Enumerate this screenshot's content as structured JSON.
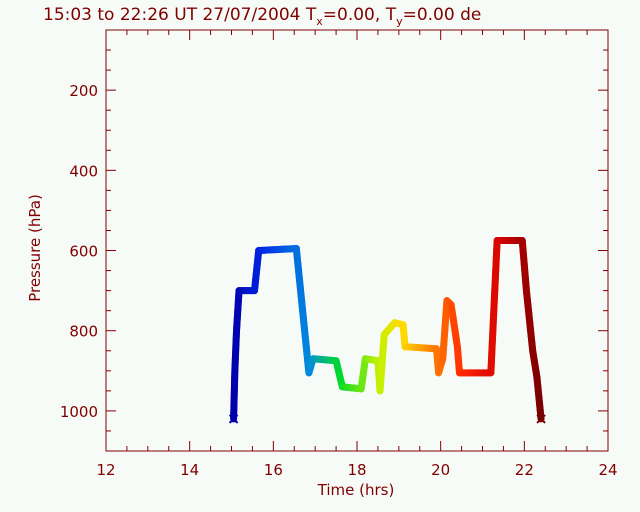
{
  "chart_data": {
    "type": "line",
    "title": "15:03 to 22:26 UT 27/07/2004   T",
    "title_parts": {
      "t1": "T",
      "s1": "x",
      "v1": "=0.00, ",
      "t2": "T",
      "s2": "y",
      "v2": "=0.00 de"
    },
    "xlabel": "Time  (hrs)",
    "ylabel": "Pressure  (hPa)",
    "xlim": [
      12,
      24
    ],
    "ylim": [
      1100,
      50
    ],
    "x_ticks": [
      12,
      14,
      16,
      18,
      20,
      22,
      24
    ],
    "y_ticks": [
      200,
      400,
      600,
      800,
      1000
    ],
    "x_minor_step": 0.5,
    "y_minor_step": 50,
    "colors": {
      "background": "#f7fbf7",
      "axis": "#800000"
    },
    "series": [
      {
        "colormap": "rainbow",
        "points": [
          [
            15.05,
            1020
          ],
          [
            15.08,
            900
          ],
          [
            15.12,
            800
          ],
          [
            15.18,
            700
          ],
          [
            15.55,
            700
          ],
          [
            15.65,
            600
          ],
          [
            16.55,
            595
          ],
          [
            16.85,
            905
          ],
          [
            16.95,
            870
          ],
          [
            17.5,
            875
          ],
          [
            17.65,
            940
          ],
          [
            18.1,
            945
          ],
          [
            18.2,
            870
          ],
          [
            18.5,
            875
          ],
          [
            18.55,
            950
          ],
          [
            18.65,
            810
          ],
          [
            18.9,
            780
          ],
          [
            19.1,
            785
          ],
          [
            19.15,
            840
          ],
          [
            19.9,
            845
          ],
          [
            19.95,
            905
          ],
          [
            20.05,
            870
          ],
          [
            20.15,
            725
          ],
          [
            20.25,
            735
          ],
          [
            20.4,
            840
          ],
          [
            20.45,
            905
          ],
          [
            21.2,
            905
          ],
          [
            21.35,
            575
          ],
          [
            21.95,
            575
          ],
          [
            22.05,
            700
          ],
          [
            22.2,
            850
          ],
          [
            22.3,
            915
          ],
          [
            22.4,
            1020
          ]
        ]
      }
    ]
  }
}
